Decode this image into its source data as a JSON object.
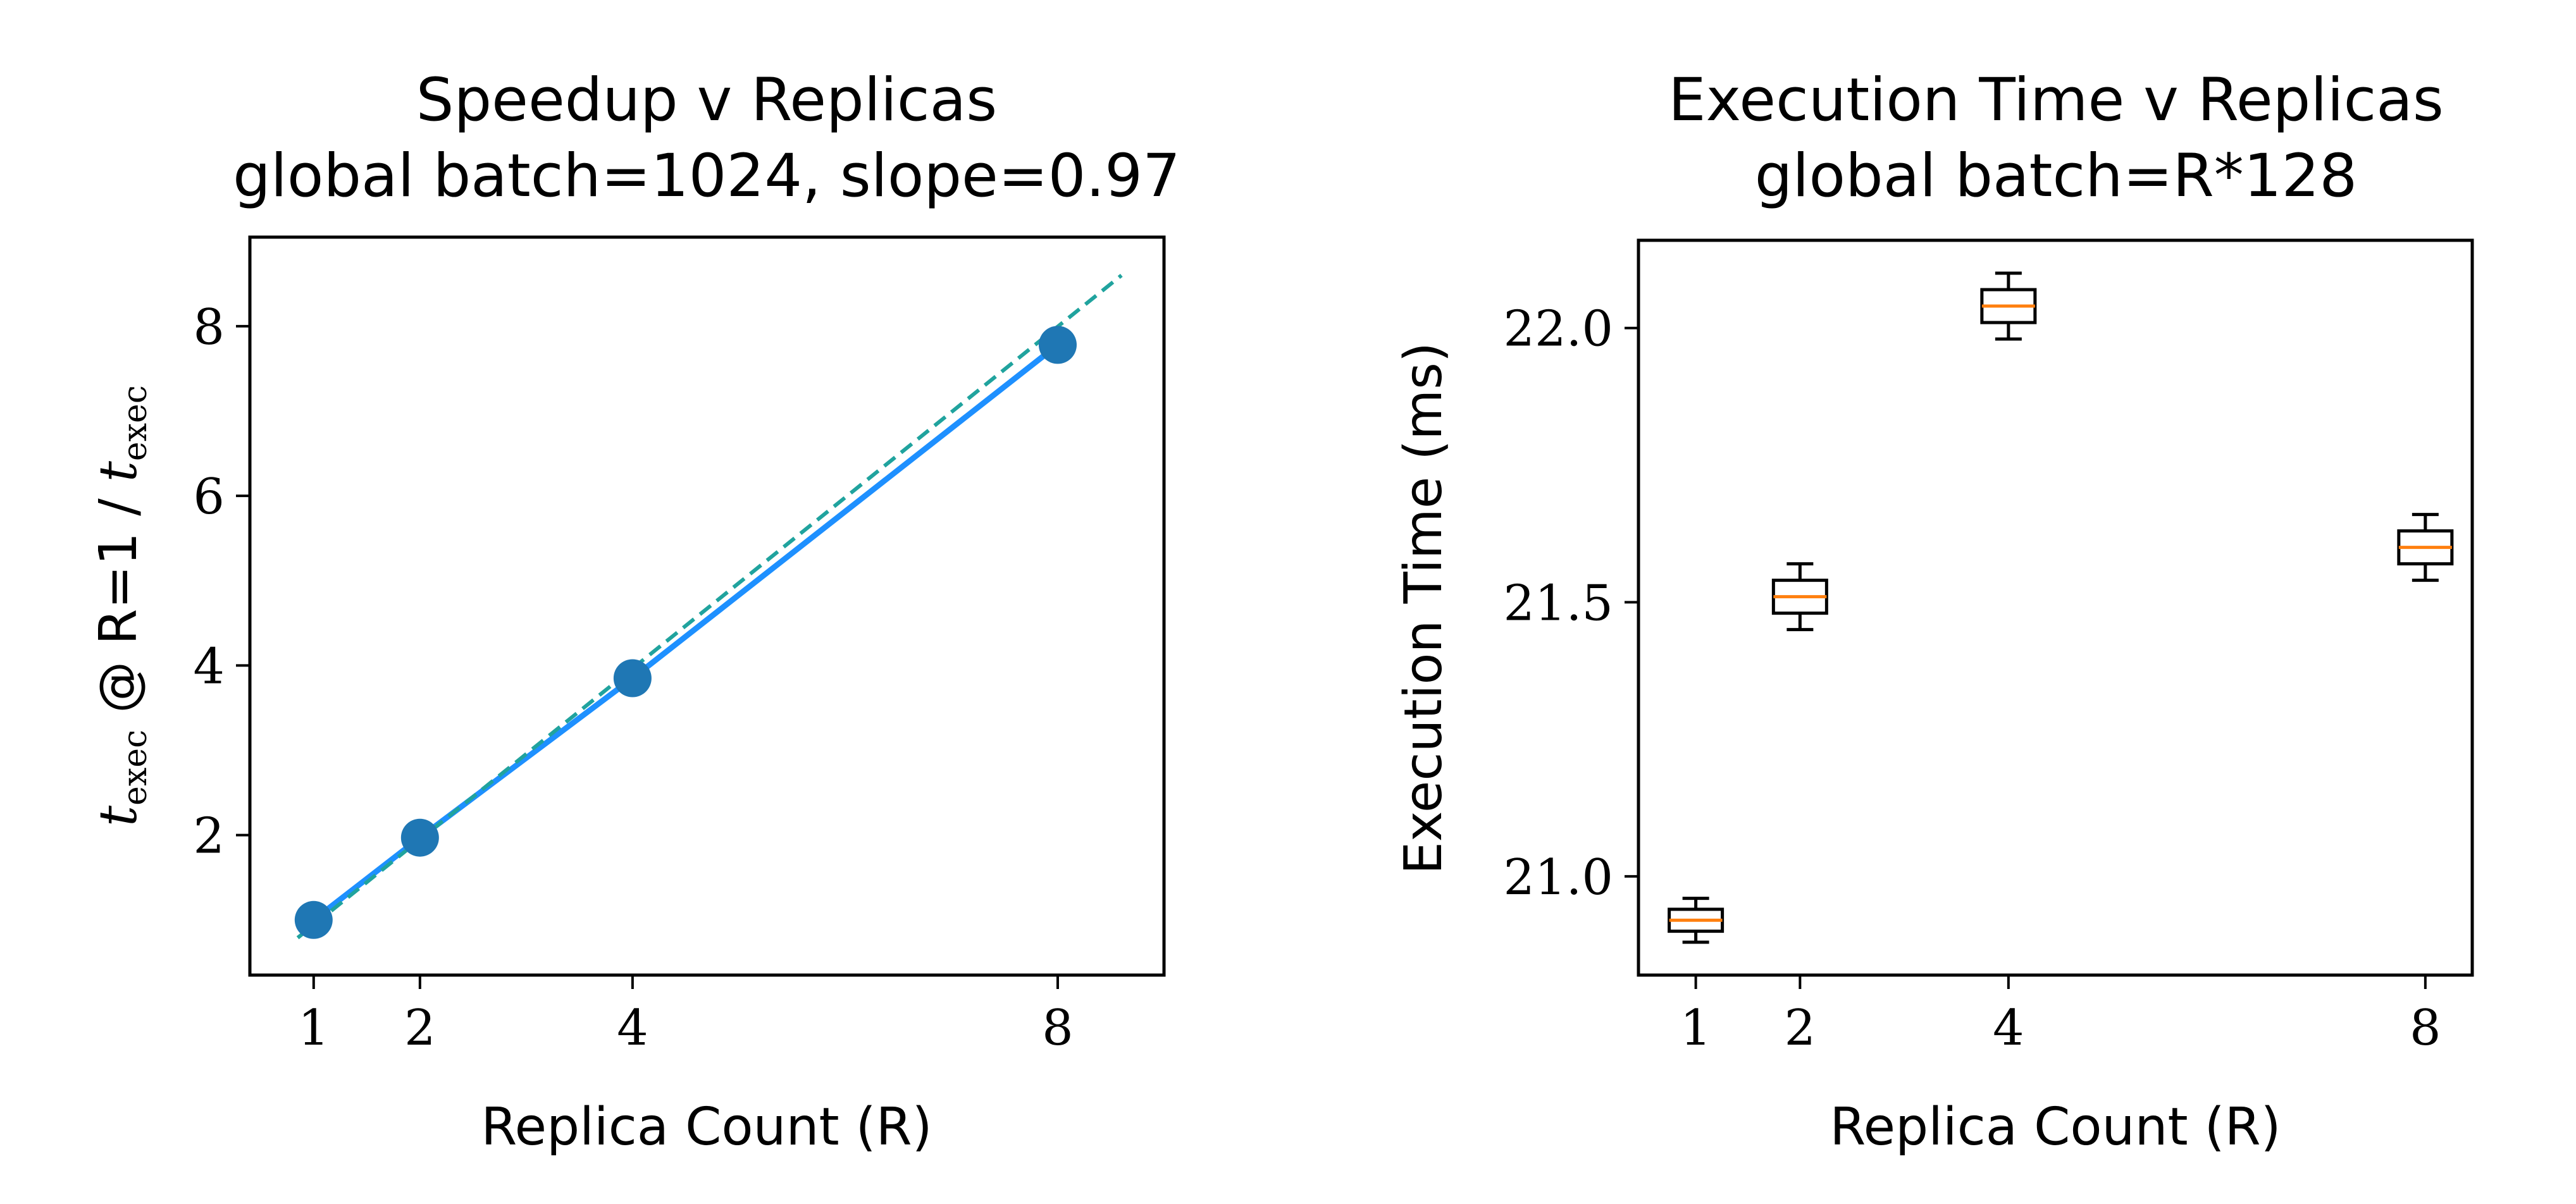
{
  "chart_data": [
    {
      "type": "scatter",
      "title": "Speedup v Replicas",
      "subtitle": "global batch=1024, slope=0.97",
      "xlabel": "Replica Count (R)",
      "ylabel": {
        "t1": "t",
        "sub1": "exec",
        "mid": " @ R=1 / ",
        "t2": "t",
        "sub2": "exec"
      },
      "x_ticks": [
        1,
        2,
        4,
        8
      ],
      "y_ticks": [
        2,
        4,
        6,
        8
      ],
      "xlim": [
        0.4,
        9.0
      ],
      "ylim": [
        0.35,
        9.05
      ],
      "grid": false,
      "series": [
        {
          "kind": "points",
          "x": [
            1,
            2,
            4,
            8
          ],
          "y": [
            1.0,
            1.97,
            3.85,
            7.78
          ],
          "color": "#1f77b4"
        },
        {
          "kind": "line",
          "x": [
            1,
            2,
            4,
            8
          ],
          "y": [
            1.0,
            1.97,
            3.85,
            7.78
          ],
          "color": "#1e90ff"
        },
        {
          "kind": "fit",
          "style": "dashed",
          "x": [
            0.85,
            8.6
          ],
          "y": [
            0.79,
            8.6
          ],
          "color": "#20a39e"
        }
      ]
    },
    {
      "type": "box",
      "title": "Execution Time v Replicas",
      "subtitle": "global batch=R*128",
      "xlabel": "Replica Count (R)",
      "ylabel": "Execution Time (ms)",
      "x_ticks": [
        1,
        2,
        4,
        8
      ],
      "y_ticks": [
        "21.0",
        "21.5",
        "22.0"
      ],
      "xlim": [
        0.45,
        8.45
      ],
      "ylim": [
        20.82,
        22.16
      ],
      "grid": false,
      "boxes": [
        {
          "x": 1,
          "whislo": 20.88,
          "q1": 20.9,
          "med": 20.92,
          "q3": 20.94,
          "whishi": 20.96
        },
        {
          "x": 2,
          "whislo": 21.45,
          "q1": 21.48,
          "med": 21.51,
          "q3": 21.54,
          "whishi": 21.57
        },
        {
          "x": 4,
          "whislo": 21.98,
          "q1": 22.01,
          "med": 22.04,
          "q3": 22.07,
          "whishi": 22.1
        },
        {
          "x": 8,
          "whislo": 21.54,
          "q1": 21.57,
          "med": 21.6,
          "q3": 21.63,
          "whishi": 21.66
        }
      ],
      "box_color": "#000000",
      "median_color": "#ff7f0e"
    }
  ]
}
